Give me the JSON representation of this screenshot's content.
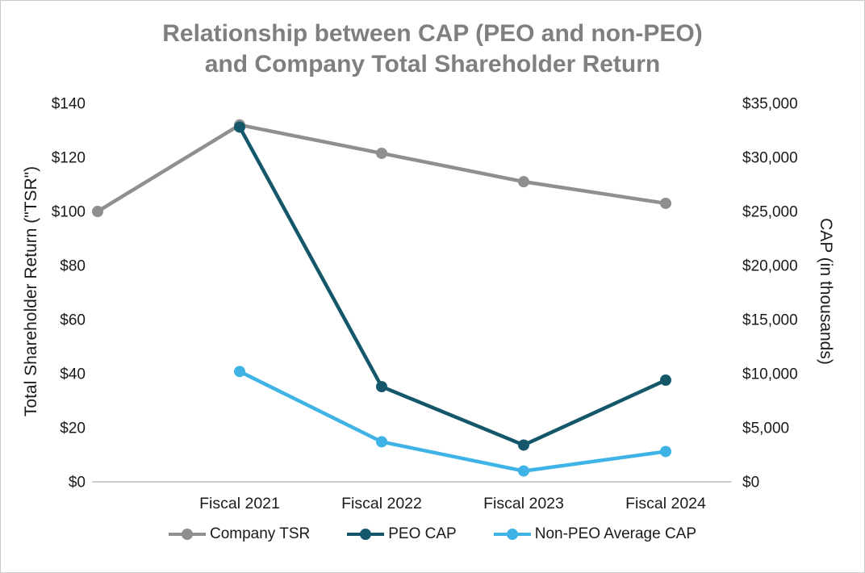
{
  "title": {
    "line1": "Relationship between CAP (PEO and non-PEO)",
    "line2": "and Company Total Shareholder Return"
  },
  "colors": {
    "title_text": "#7f7f7f",
    "axis_line": "#bfbfbf",
    "tick_text": "#1a1a1a"
  },
  "chart_data": {
    "type": "line",
    "title": "Relationship between CAP (PEO and non-PEO) and Company Total Shareholder Return",
    "x_labels": [
      "",
      "Fiscal 2021",
      "Fiscal 2022",
      "Fiscal 2023",
      "Fiscal 2024"
    ],
    "left_axis": {
      "label": "Total Shareholder Return (\"TSR\")",
      "min": 0,
      "max": 140,
      "step": 20,
      "ticks": [
        "$0",
        "$20",
        "$40",
        "$60",
        "$80",
        "$100",
        "$120",
        "$140"
      ]
    },
    "right_axis": {
      "label": "CAP (in thousands)",
      "min": 0,
      "max": 35000,
      "step": 5000,
      "ticks": [
        "$0",
        "$5,000",
        "$10,000",
        "$15,000",
        "$20,000",
        "$25,000",
        "$30,000",
        "$35,000"
      ]
    },
    "series": [
      {
        "name": "Company TSR",
        "axis": "left",
        "color": "#8f8f8f",
        "values": [
          100,
          132,
          121.5,
          111,
          103
        ]
      },
      {
        "name": "PEO CAP",
        "axis": "right",
        "color": "#14576b",
        "values": [
          null,
          32800,
          8800,
          3400,
          9400
        ]
      },
      {
        "name": "Non-PEO Average CAP",
        "axis": "right",
        "color": "#3fb3e5",
        "values": [
          null,
          10200,
          3700,
          1000,
          2800
        ]
      }
    ],
    "legend_position": "bottom",
    "grid": false
  }
}
